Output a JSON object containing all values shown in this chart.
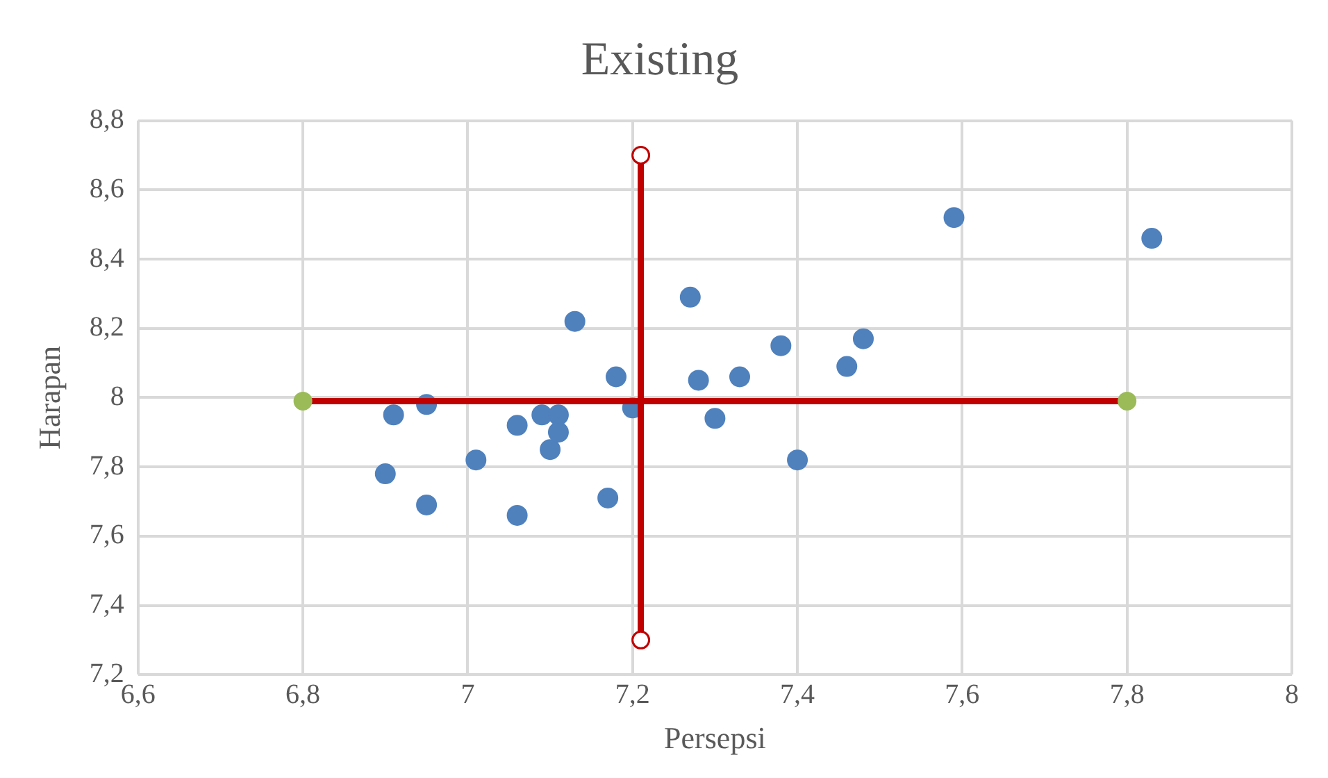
{
  "chart_data": {
    "type": "scatter",
    "title": "Existing",
    "xlabel": "Persepsi",
    "ylabel": "Harapan",
    "xlim": [
      6.6,
      8
    ],
    "ylim": [
      7.2,
      8.8
    ],
    "xticks": [
      {
        "value": 6.6,
        "label": "6,6"
      },
      {
        "value": 6.8,
        "label": "6,8"
      },
      {
        "value": 7,
        "label": "7"
      },
      {
        "value": 7.2,
        "label": "7,2"
      },
      {
        "value": 7.4,
        "label": "7,4"
      },
      {
        "value": 7.6,
        "label": "7,6"
      },
      {
        "value": 7.8,
        "label": "7,8"
      },
      {
        "value": 8,
        "label": "8"
      }
    ],
    "yticks": [
      {
        "value": 7.2,
        "label": "7,2"
      },
      {
        "value": 7.4,
        "label": "7,4"
      },
      {
        "value": 7.6,
        "label": "7,6"
      },
      {
        "value": 7.8,
        "label": "7,8"
      },
      {
        "value": 8,
        "label": "8"
      },
      {
        "value": 8.2,
        "label": "8,2"
      },
      {
        "value": 8.4,
        "label": "8,4"
      },
      {
        "value": 8.6,
        "label": "8,6"
      },
      {
        "value": 8.8,
        "label": "8,8"
      }
    ],
    "grid": true,
    "legend": false,
    "marker": "circle",
    "series": [
      {
        "color": "#4f81bd",
        "x": [
          6.9,
          6.91,
          6.95,
          6.95,
          7.01,
          7.06,
          7.06,
          7.09,
          7.1,
          7.11,
          7.11,
          7.13,
          7.17,
          7.18,
          7.2,
          7.27,
          7.28,
          7.3,
          7.33,
          7.38,
          7.4,
          7.46,
          7.48,
          7.59,
          7.83
        ],
        "values": [
          7.78,
          7.95,
          7.98,
          7.69,
          7.82,
          7.92,
          7.66,
          7.95,
          7.85,
          7.95,
          7.9,
          8.22,
          7.71,
          8.06,
          7.97,
          8.29,
          8.05,
          7.94,
          8.06,
          8.15,
          7.82,
          8.09,
          8.17,
          8.52,
          8.46
        ]
      },
      {
        "type": "line",
        "color": "#c00000",
        "x": [
          6.8,
          7.8
        ],
        "values": [
          7.99,
          7.99
        ],
        "colors": [
          "#9bbb59",
          "#9bbb59"
        ]
      },
      {
        "type": "line",
        "color": "#c00000",
        "x": [
          7.21,
          7.21
        ],
        "values": [
          7.3,
          8.7
        ],
        "colors": [
          "#ffffff",
          "#ffffff"
        ]
      }
    ]
  }
}
